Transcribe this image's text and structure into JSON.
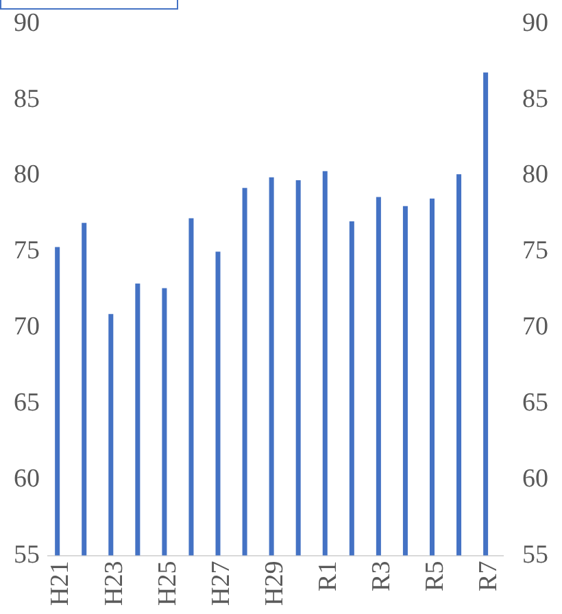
{
  "chart_data": {
    "type": "bar",
    "categories": [
      "H21",
      null,
      "H23",
      null,
      "H25",
      null,
      "H27",
      null,
      "H29",
      null,
      "R1",
      null,
      "R3",
      null,
      "R5",
      null,
      "R7"
    ],
    "values": [
      75.3,
      76.9,
      70.9,
      72.9,
      72.6,
      77.2,
      75.0,
      79.2,
      79.9,
      79.7,
      80.3,
      77.0,
      78.6,
      78.0,
      78.5,
      80.1,
      86.8
    ],
    "color": "#4472c4",
    "ylim": [
      55,
      90
    ],
    "yticks": [
      55,
      60,
      65,
      70,
      75,
      80,
      85,
      90
    ],
    "y2lim": [
      55,
      90
    ],
    "y2ticks": [
      55,
      60,
      65,
      70,
      75,
      80,
      85,
      90
    ],
    "grid": false,
    "legend": false
  }
}
